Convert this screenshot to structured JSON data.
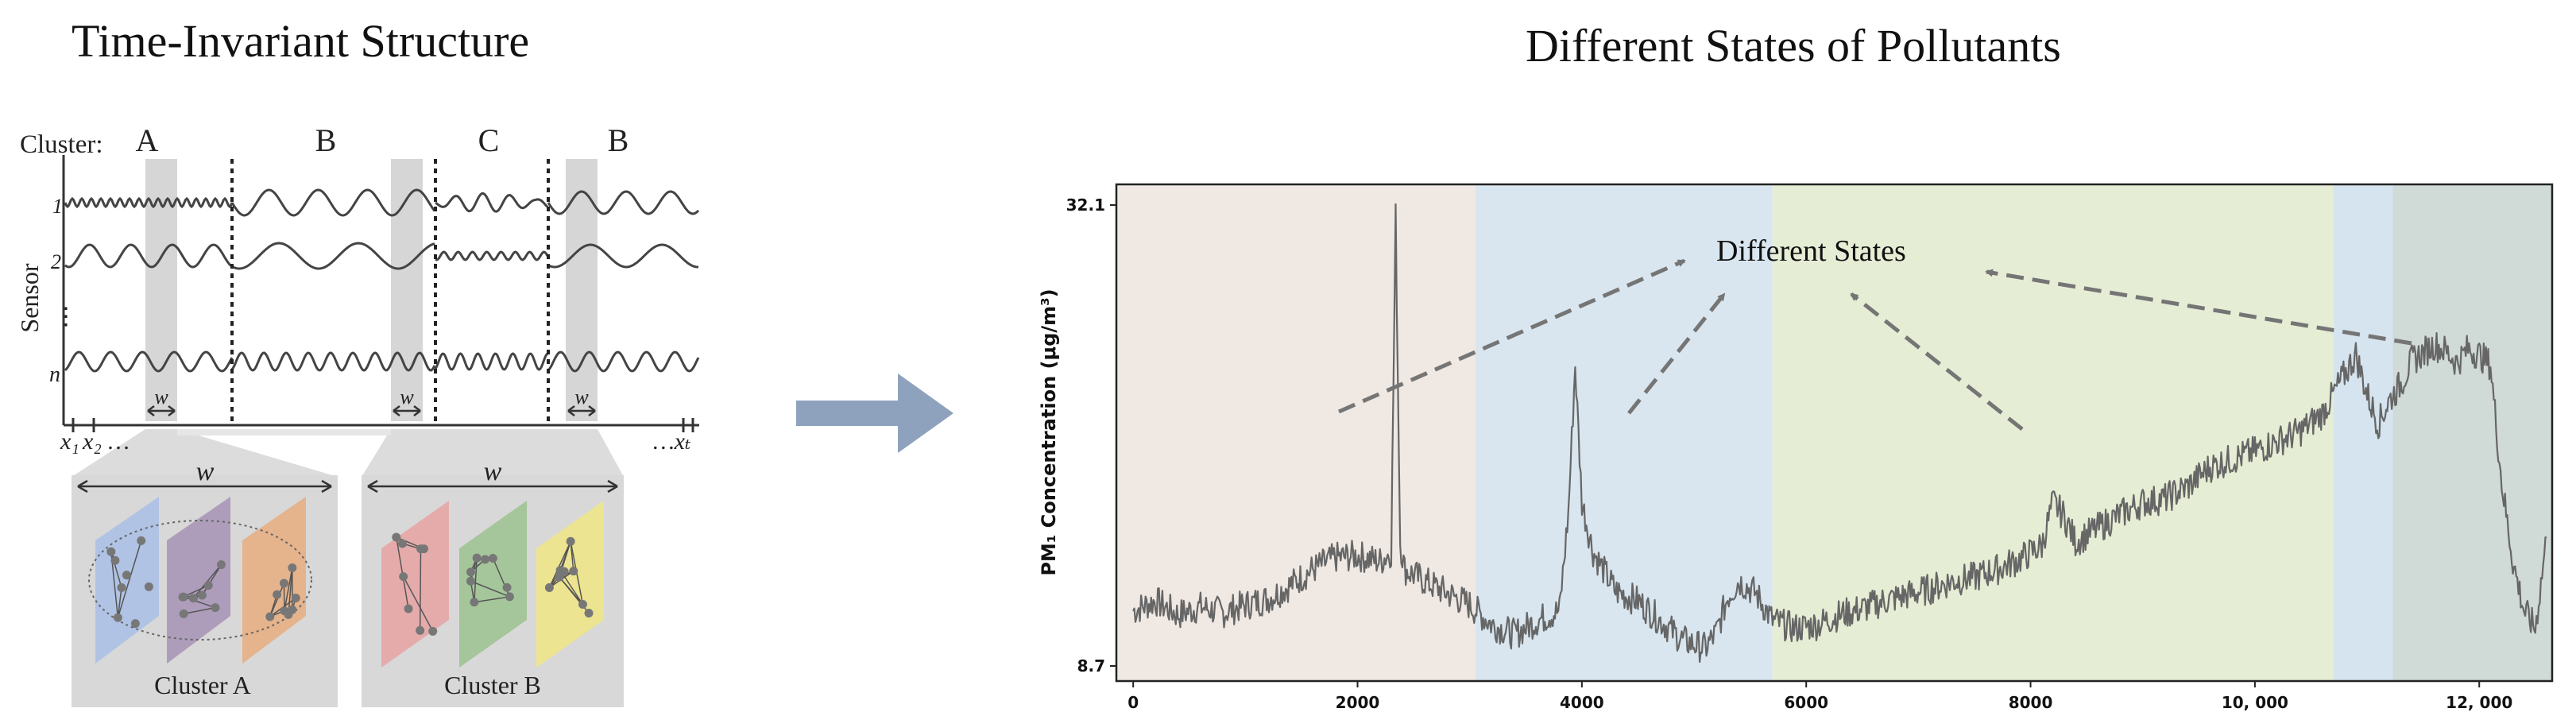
{
  "left_panel": {
    "title": "Time-Invariant Structure",
    "cluster_label": "Cluster:",
    "clusters_top": [
      "A",
      "B",
      "C",
      "B"
    ],
    "sensor_axis_label": "Sensor",
    "sensor_rows": [
      "1",
      "2",
      "⋮",
      "n"
    ],
    "window_label": "w",
    "time_start": [
      "x₁",
      "x₂",
      "…"
    ],
    "time_end": "…xₜ",
    "group_a_label": "Cluster A",
    "group_b_label": "Cluster B"
  },
  "right_panel": {
    "title": "Different States of Pollutants",
    "annotation": "Different States",
    "ylabel": "PM₁ Concentration (μg/m³)",
    "colors": {
      "region_1": "#efe8e3",
      "region_2": "#d9e6ef",
      "region_3": "#e6edd5",
      "region_4": "#d5e4ee",
      "region_5": "#d0dad6",
      "line": "#666666",
      "arrow": "#757575"
    }
  },
  "chart_data": {
    "type": "line",
    "xlabel": "",
    "ylabel": "PM₁ Concentration (μg/m³)",
    "xlim": [
      -150,
      12650
    ],
    "ylim": [
      8.7,
      32.1
    ],
    "yticks": [
      8.7,
      32.1
    ],
    "ytick_labels": [
      "8.7",
      "32.1"
    ],
    "xticks": [
      0,
      2000,
      4000,
      6000,
      8000,
      10000,
      12000
    ],
    "xtick_labels": [
      "0",
      "2000",
      "4000",
      "6000",
      "8000",
      "10, 000",
      "12, 000"
    ],
    "state_boundaries": [
      3050,
      5700,
      10700,
      11230
    ],
    "x": [
      0,
      200,
      400,
      600,
      800,
      1000,
      1200,
      1400,
      1600,
      1800,
      2000,
      2200,
      2300,
      2340,
      2380,
      2420,
      2600,
      2800,
      3000,
      3200,
      3400,
      3600,
      3800,
      3880,
      3940,
      4000,
      4100,
      4300,
      4500,
      4700,
      4900,
      5100,
      5200,
      5300,
      5400,
      5550,
      5700,
      5900,
      6100,
      6300,
      6500,
      6700,
      6900,
      7100,
      7300,
      7500,
      7700,
      7900,
      8100,
      8200,
      8300,
      8400,
      8600,
      8800,
      9000,
      9200,
      9400,
      9600,
      9800,
      10000,
      10200,
      10400,
      10600,
      10800,
      10900,
      11000,
      11100,
      11200,
      11300,
      11400,
      11500,
      11600,
      11700,
      11800,
      11900,
      12000,
      12100,
      12200,
      12300,
      12400,
      12500,
      12600
    ],
    "values": [
      11.5,
      12.0,
      11.3,
      11.7,
      11.4,
      11.8,
      12.1,
      12.8,
      13.6,
      14.2,
      14.3,
      14.0,
      14.5,
      31.5,
      15.0,
      13.6,
      13.0,
      12.4,
      11.8,
      10.8,
      10.3,
      11.0,
      11.5,
      16.5,
      24.0,
      17.0,
      14.5,
      12.5,
      12.0,
      11.0,
      10.0,
      9.6,
      10.4,
      12.2,
      13.0,
      12.4,
      11.0,
      10.6,
      10.8,
      11.3,
      11.6,
      12.0,
      12.3,
      12.6,
      13.0,
      13.2,
      13.6,
      14.1,
      14.8,
      17.0,
      16.3,
      15.0,
      15.7,
      16.4,
      17.0,
      17.2,
      17.8,
      18.8,
      19.2,
      19.6,
      20.1,
      20.6,
      21.5,
      23.5,
      24.5,
      22.5,
      21.0,
      22.2,
      23.0,
      24.2,
      24.6,
      25.0,
      24.7,
      24.1,
      24.8,
      24.5,
      24.0,
      18.0,
      14.0,
      11.5,
      10.6,
      15.2
    ]
  }
}
